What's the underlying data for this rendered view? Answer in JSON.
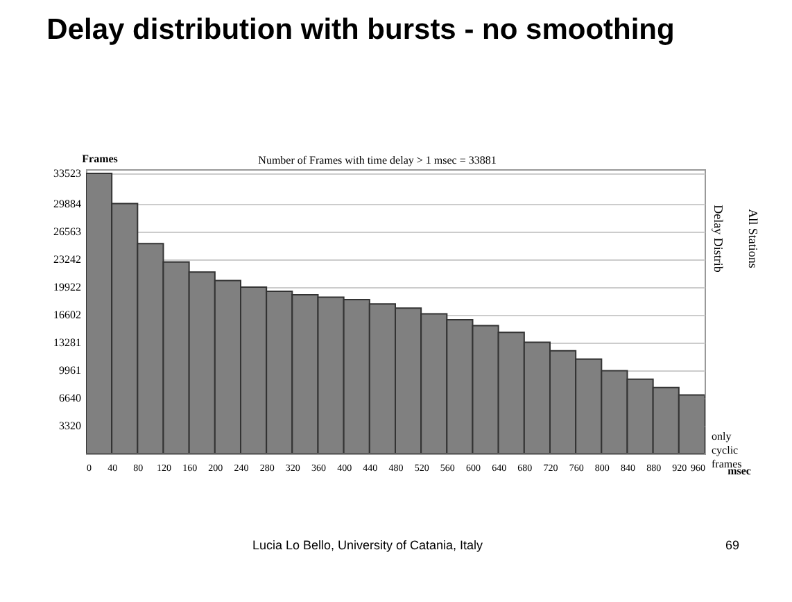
{
  "chart_data": {
    "type": "histogram",
    "title": "Delay distribution with bursts - no smoothing",
    "ylabel": "Frames",
    "xlabel": "msec",
    "bins": [
      0,
      40,
      80,
      120,
      160,
      200,
      240,
      280,
      320,
      360,
      400,
      440,
      480,
      520,
      560,
      600,
      640,
      680,
      720,
      760,
      800,
      840,
      880,
      920,
      960
    ],
    "values": [
      33500,
      29900,
      25100,
      22900,
      21700,
      20700,
      19900,
      19400,
      19000,
      18700,
      18400,
      17900,
      17400,
      16700,
      16000,
      15300,
      14500,
      13300,
      12300,
      11300,
      9900,
      8900,
      7900,
      7000
    ],
    "color": "#808080",
    "xlim": [
      0,
      960
    ],
    "xticks": [
      0,
      40,
      80,
      120,
      160,
      200,
      240,
      280,
      320,
      360,
      400,
      440,
      480,
      520,
      560,
      600,
      640,
      680,
      720,
      760,
      800,
      840,
      880,
      920,
      960
    ],
    "ylim": [
      0,
      34000
    ],
    "yticks": [
      3320,
      6640,
      9961,
      13281,
      16602,
      19922,
      23242,
      26563,
      29884,
      33523
    ],
    "grid": "y",
    "annotations": [
      "Number of Frames with time delay > 1 msec = 33881",
      "Delay Distrib",
      "All Stations",
      "only cyclic frames",
      "Lucia Lo Bello, University of Catania, Italy",
      "69"
    ]
  }
}
